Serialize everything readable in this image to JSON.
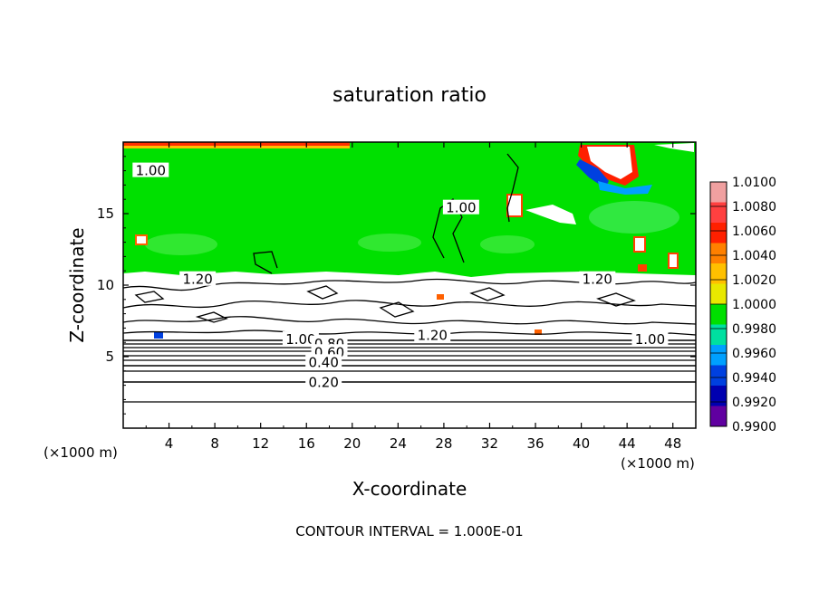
{
  "chart_data": {
    "type": "heatmap",
    "title": "saturation ratio",
    "xlabel": "X-coordinate",
    "ylabel": "Z-coordinate",
    "x_unit_note_left": "(×1000 m)",
    "x_unit_note_right": "(×1000 m)",
    "xlim": [
      0,
      50
    ],
    "ylim": [
      0,
      20
    ],
    "x_ticks": [
      4,
      8,
      12,
      16,
      20,
      24,
      28,
      32,
      36,
      40,
      44,
      48
    ],
    "x_tick_labels": [
      "4",
      "8",
      "12",
      "16",
      "20",
      "24",
      "28",
      "32",
      "36",
      "40",
      "44",
      "48"
    ],
    "y_ticks": [
      5,
      10,
      15
    ],
    "y_tick_labels": [
      "5",
      "10",
      "15"
    ],
    "footer": "CONTOUR INTERVAL = 1.000E-01",
    "colorbar": {
      "levels": [
        "1.0100",
        "1.0080",
        "1.0060",
        "1.0040",
        "1.0020",
        "1.0000",
        "0.9980",
        "0.9960",
        "0.9940",
        "0.9920",
        "0.9900"
      ],
      "colors": [
        "#f0a0a0",
        "#ff4040",
        "#ff2000",
        "#ff8000",
        "#ffc000",
        "#e8e800",
        "#00e000",
        "#00e0a0",
        "#00a0ff",
        "#0040e0",
        "#0000b0",
        "#6000a0"
      ]
    },
    "contour_labels": [
      {
        "text": "1.00",
        "x": 2.4,
        "z": 18.0
      },
      {
        "text": "1.00",
        "x": 29.5,
        "z": 15.4
      },
      {
        "text": "1.20",
        "x": 6.5,
        "z": 10.4
      },
      {
        "text": "1.20",
        "x": 41.4,
        "z": 10.4
      },
      {
        "text": "1.20",
        "x": 27.0,
        "z": 6.5
      },
      {
        "text": "1.00",
        "x": 46.0,
        "z": 6.2
      },
      {
        "text": "1.00",
        "x": 15.5,
        "z": 6.2
      },
      {
        "text": "0.80",
        "x": 18.0,
        "z": 5.9
      },
      {
        "text": "0.60",
        "x": 18.0,
        "z": 5.3
      },
      {
        "text": "0.40",
        "x": 17.5,
        "z": 4.6
      },
      {
        "text": "0.20",
        "x": 17.5,
        "z": 3.2
      }
    ],
    "regions": {
      "saturated_layer_top_z": 20,
      "saturated_layer_bottom_z": 10.8,
      "cloud_base_z": 6.0
    }
  }
}
